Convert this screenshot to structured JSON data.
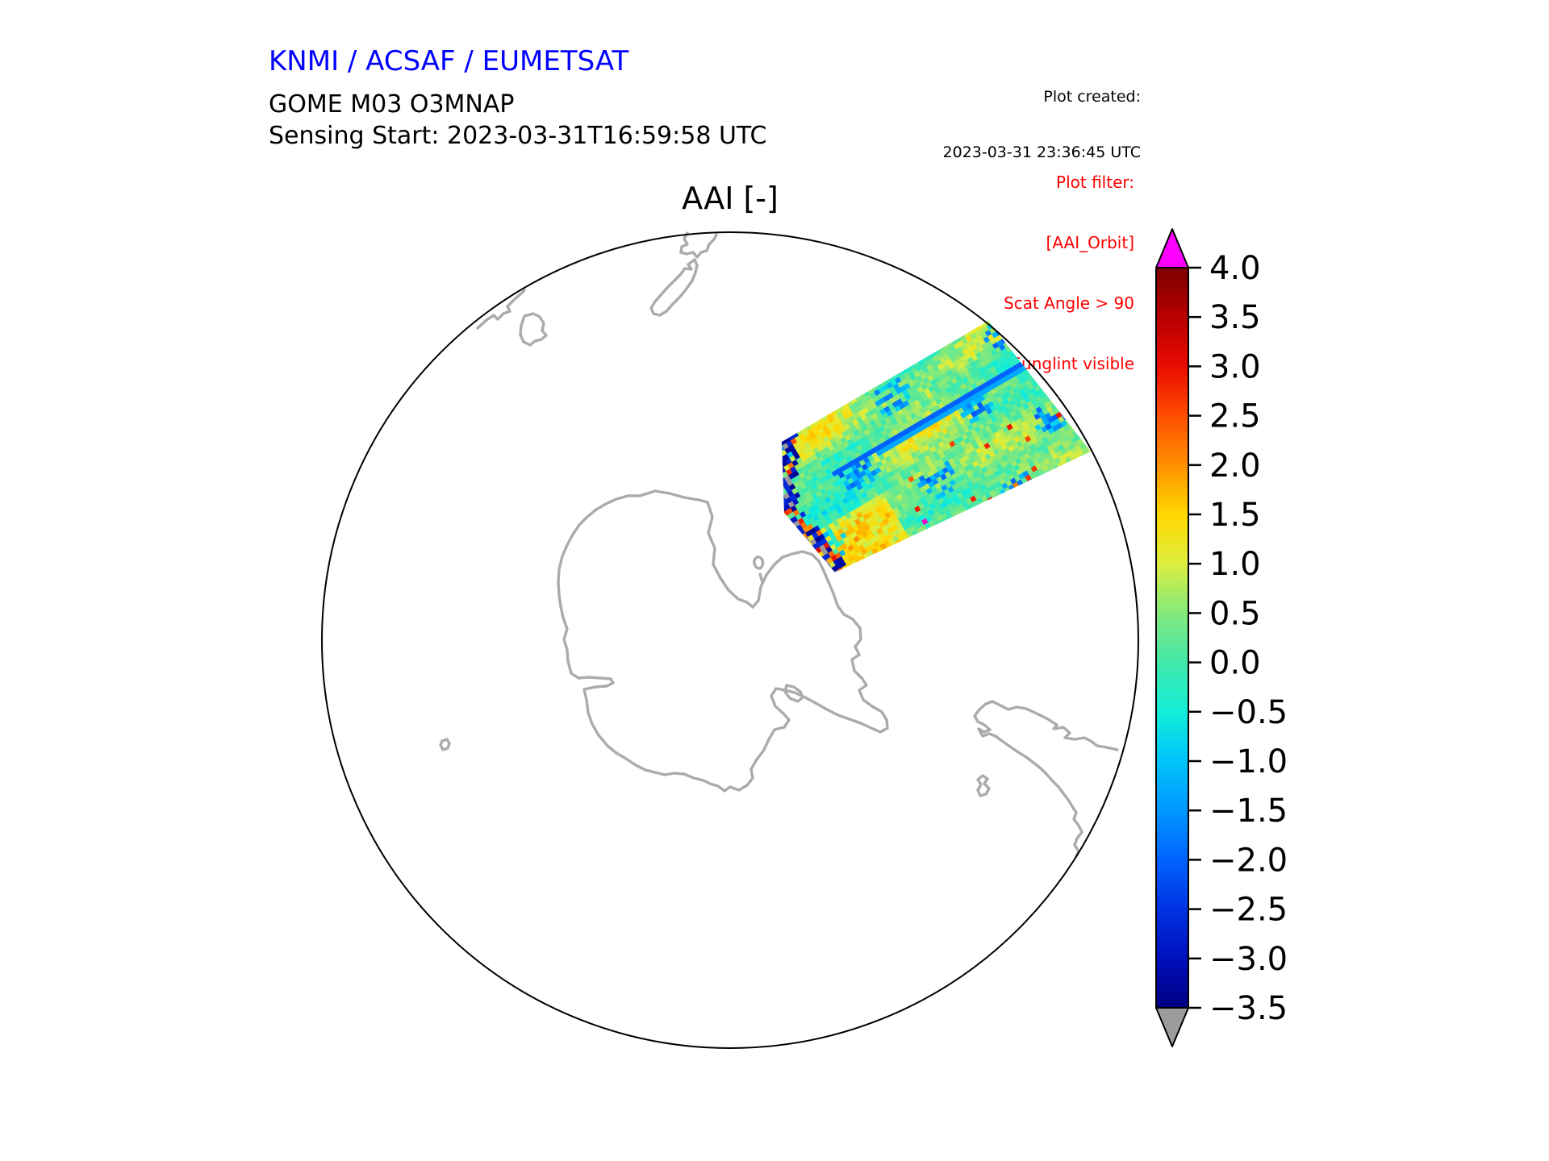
{
  "header": {
    "institution": "KNMI / ACSAF / EUMETSAT",
    "institution_color": "#0000ff",
    "product": "GOME M03 O3MNAP",
    "sensing_start": "Sensing Start: 2023-03-31T16:59:58 UTC",
    "plot_created_label": "Plot created:",
    "plot_created_value": "2023-03-31 23:36:45 UTC"
  },
  "plot_filter": {
    "color": "#ff0000",
    "line1": "Plot filter:",
    "line2": "[AAI_Orbit]",
    "line3": "Scat Angle > 90",
    "line4": "Sunglint visible"
  },
  "map": {
    "title": "AAI [-]",
    "boundary_color": "#000000",
    "coastline_color": "#ababab"
  },
  "chart_data": {
    "type": "heatmap",
    "title": "AAI [-]",
    "projection": "south polar stereographic view centered on Antarctica",
    "colorbar": {
      "vmin": -3.5,
      "vmax": 4.0,
      "tick_step": 0.5,
      "ticks": [
        "4.0",
        "3.5",
        "3.0",
        "2.5",
        "2.0",
        "1.5",
        "1.0",
        "0.5",
        "0.0",
        "−0.5",
        "−1.0",
        "−1.5",
        "−2.0",
        "−2.5",
        "−3.0",
        "−3.5"
      ],
      "tick_values": [
        4.0,
        3.5,
        3.0,
        2.5,
        2.0,
        1.5,
        1.0,
        0.5,
        0.0,
        -0.5,
        -1.0,
        -1.5,
        -2.0,
        -2.5,
        -3.0,
        -3.5
      ],
      "over_arrow_color": "#ff00ff",
      "under_arrow_color": "#9c9c9c",
      "stops": [
        [
          4.0,
          "#7d0000"
        ],
        [
          3.5,
          "#b70000"
        ],
        [
          3.0,
          "#ea0b00"
        ],
        [
          2.5,
          "#ff4e00"
        ],
        [
          2.0,
          "#ff9000"
        ],
        [
          1.5,
          "#ffd800"
        ],
        [
          1.0,
          "#dcee3d"
        ],
        [
          0.5,
          "#84e97c"
        ],
        [
          0.0,
          "#42e8a8"
        ],
        [
          -0.5,
          "#12eed9"
        ],
        [
          -1.0,
          "#00c4fa"
        ],
        [
          -1.5,
          "#0097ff"
        ],
        [
          -2.0,
          "#0063ff"
        ],
        [
          -2.5,
          "#0033e2"
        ],
        [
          -3.0,
          "#0010bd"
        ],
        [
          -3.5,
          "#000082"
        ]
      ]
    },
    "swath": {
      "description": "Single orbit swath of aerosol absorbing index data crossing the South Pacific toward the Antarctic Peninsula; mostly green/cyan values around 0, yellow streaks near +1, blue patches near -1.5, dark blue speckled left edge near -3",
      "typical_value_range": [
        -1.5,
        1.5
      ],
      "edge_speckle_color": "#9a9a9a",
      "magenta_speck_color": "#ff00cc"
    }
  }
}
